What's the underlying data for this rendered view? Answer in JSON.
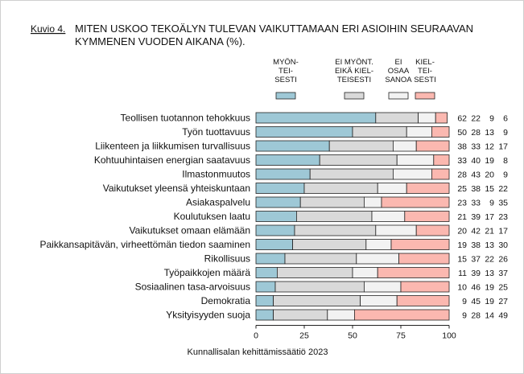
{
  "figure_label": "Kuvio 4.",
  "source": "Kunnallisalan kehittämissäätiö 2023",
  "chart_data": {
    "type": "bar",
    "orientation": "horizontal",
    "stacked": true,
    "title_lines": [
      "MITEN USKOO TEKOÄLYN TULEVAN VAIKUTTAMAAN ERI ASIOIHIN SEURAAVAN",
      "KYMMENEN VUODEN AIKANA (%)."
    ],
    "xlim": [
      0,
      100
    ],
    "xticks": [
      0,
      25,
      50,
      75,
      100
    ],
    "legend_placement": "top",
    "series": [
      {
        "name_lines": [
          "MYÖN-",
          "TEI-",
          "SESTI"
        ],
        "color": "#9ec8d6",
        "values": [
          62,
          50,
          38,
          33,
          28,
          25,
          23,
          21,
          20,
          19,
          15,
          11,
          10,
          9,
          9
        ]
      },
      {
        "name_lines": [
          "EI MYÖNT.",
          "EIKÄ KIEL-",
          "TEISESTI"
        ],
        "color": "#d9d9d9",
        "values": [
          22,
          28,
          33,
          40,
          43,
          38,
          33,
          39,
          42,
          38,
          37,
          39,
          46,
          45,
          28
        ]
      },
      {
        "name_lines": [
          "EI",
          "OSAA",
          "SANOA"
        ],
        "color": "#f2f2f2",
        "values": [
          9,
          13,
          12,
          19,
          20,
          15,
          9,
          17,
          21,
          13,
          22,
          13,
          19,
          19,
          14
        ]
      },
      {
        "name_lines": [
          "KIEL-",
          "TEI-",
          "SESTI"
        ],
        "color": "#fbb8b0",
        "values": [
          6,
          9,
          17,
          8,
          9,
          22,
          35,
          23,
          17,
          30,
          26,
          37,
          25,
          27,
          49
        ]
      }
    ],
    "categories": [
      "Teollisen tuotannon tehokkuus",
      "Työn tuottavuus",
      "Liikenteen ja liikkumisen turvallisuus",
      "Kohtuuhintaisen energian saatavuus",
      "Ilmastonmuutos",
      "Vaikutukset yleensä yhteiskuntaan",
      "Asiakaspalvelu",
      "Koulutuksen laatu",
      "Vaikutukset omaan elämään",
      "Paikkansapitävän, virheettömän tiedon saaminen",
      "Rikollisuus",
      "Työpaikkojen määrä",
      "Sosiaalinen tasa-arvoisuus",
      "Demokratia",
      "Yksityisyyden suoja"
    ]
  }
}
